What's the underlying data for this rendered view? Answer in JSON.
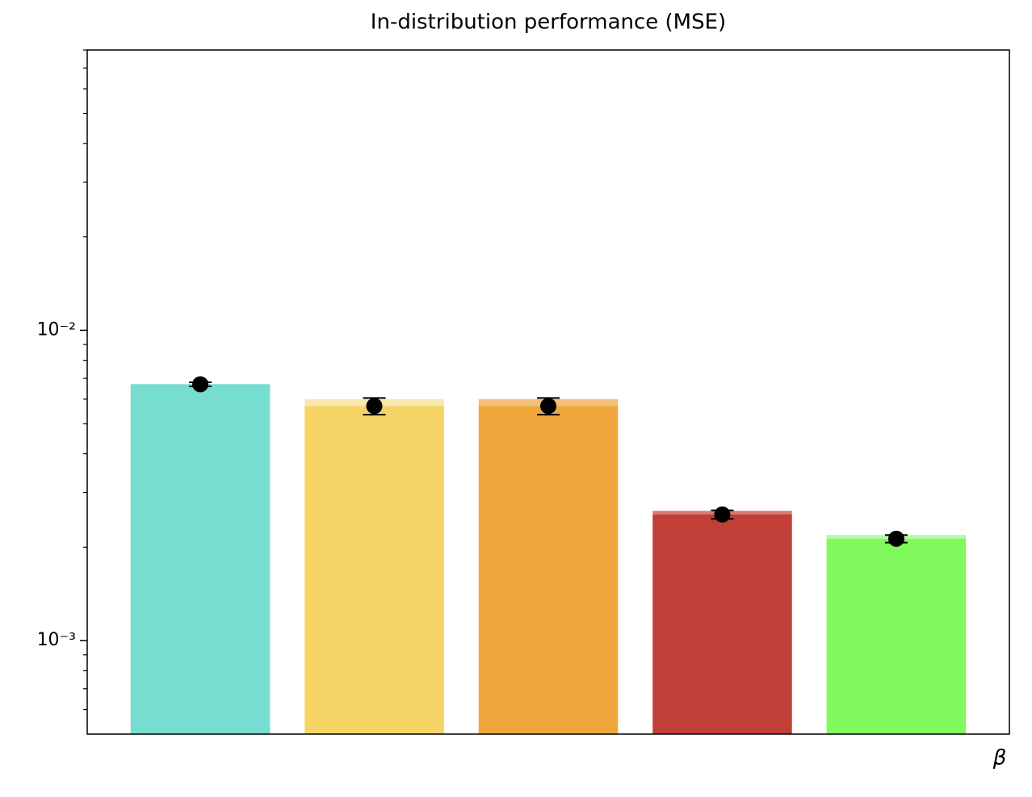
{
  "chart_data": {
    "type": "bar",
    "title": "In-distribution performance (MSE)",
    "xlabel": "β",
    "log_y": true,
    "ylim": [
      0.0005,
      0.08
    ],
    "yticks": [
      {
        "value": 0.001,
        "label": "10⁻³"
      },
      {
        "value": 0.01,
        "label": "10⁻²"
      }
    ],
    "yminorticks": [
      0.0006,
      0.0007,
      0.0008,
      0.0009,
      0.002,
      0.003,
      0.004,
      0.005,
      0.006,
      0.007,
      0.008,
      0.009,
      0.02,
      0.03,
      0.04,
      0.05,
      0.06,
      0.07,
      0.08
    ],
    "series": [
      {
        "colors": [
          "#76ddd0",
          "#f9e7b0",
          "#f2c07a",
          "#d97a75",
          "#b6f9a5"
        ],
        "values": [
          0.0067,
          0.006,
          0.006,
          0.00262,
          0.00219
        ]
      },
      {
        "colors": [
          "#76ddd0",
          "#f6d365",
          "#efa73c",
          "#c23f37",
          "#80f95c"
        ],
        "values": [
          0.0067,
          0.0057,
          0.0057,
          0.00255,
          0.00213
        ]
      }
    ],
    "markers": {
      "color": "#000000",
      "values": [
        0.0067,
        0.0057,
        0.0057,
        0.00255,
        0.00213
      ],
      "errors": [
        0.0001,
        0.00035,
        0.00035,
        8e-05,
        6e-05
      ]
    }
  }
}
